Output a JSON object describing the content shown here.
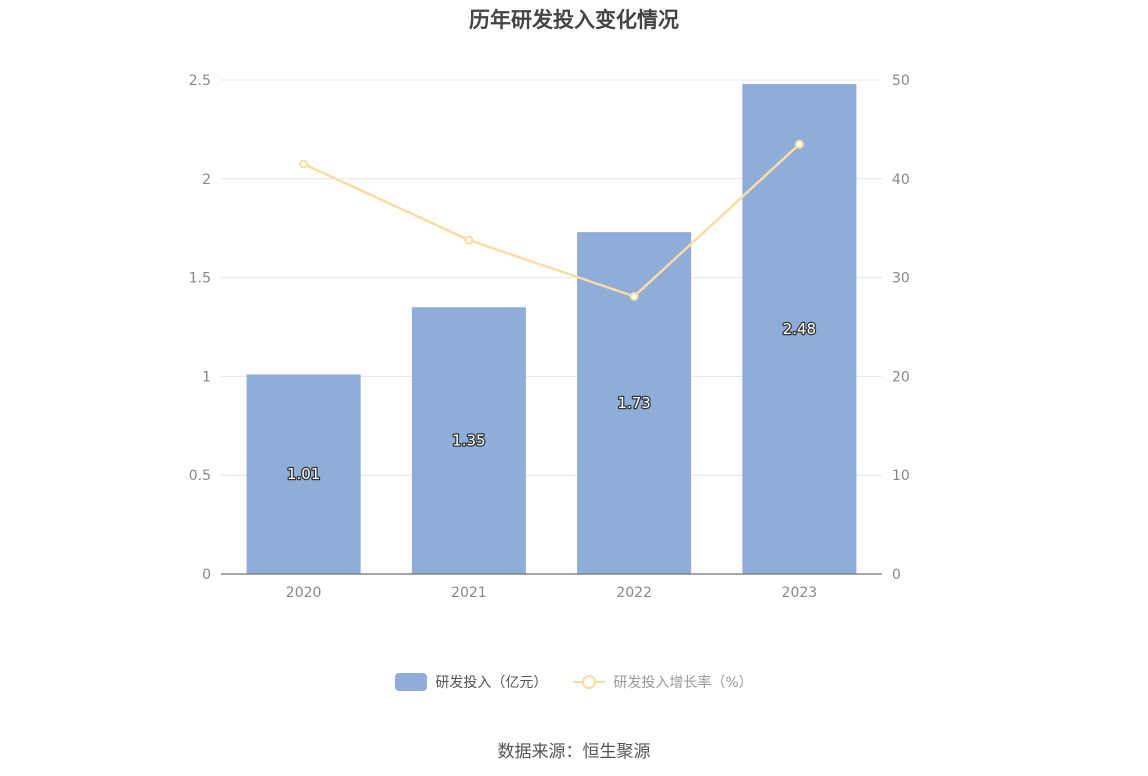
{
  "chart_data": {
    "type": "bar",
    "title": "历年研发投入变化情况",
    "categories": [
      "2020",
      "2021",
      "2022",
      "2023"
    ],
    "series": [
      {
        "name": "研发投入（亿元）",
        "type": "bar",
        "axis": "left",
        "color": "#8eadd9",
        "values": [
          1.01,
          1.35,
          1.73,
          2.48
        ]
      },
      {
        "name": "研发投入增长率（%）",
        "type": "line",
        "axis": "right",
        "color": "#fcdca3",
        "values": [
          41.5,
          33.8,
          28.1,
          43.5
        ]
      }
    ],
    "y_left": {
      "min": 0,
      "max": 2.5,
      "ticks": [
        "0",
        "0.5",
        "1",
        "1.5",
        "2",
        "2.5"
      ]
    },
    "y_right": {
      "min": 0,
      "max": 50,
      "ticks": [
        "0",
        "10",
        "20",
        "30",
        "40",
        "50"
      ]
    },
    "grid": true,
    "legend_position": "bottom"
  },
  "source": "数据来源：恒生聚源"
}
